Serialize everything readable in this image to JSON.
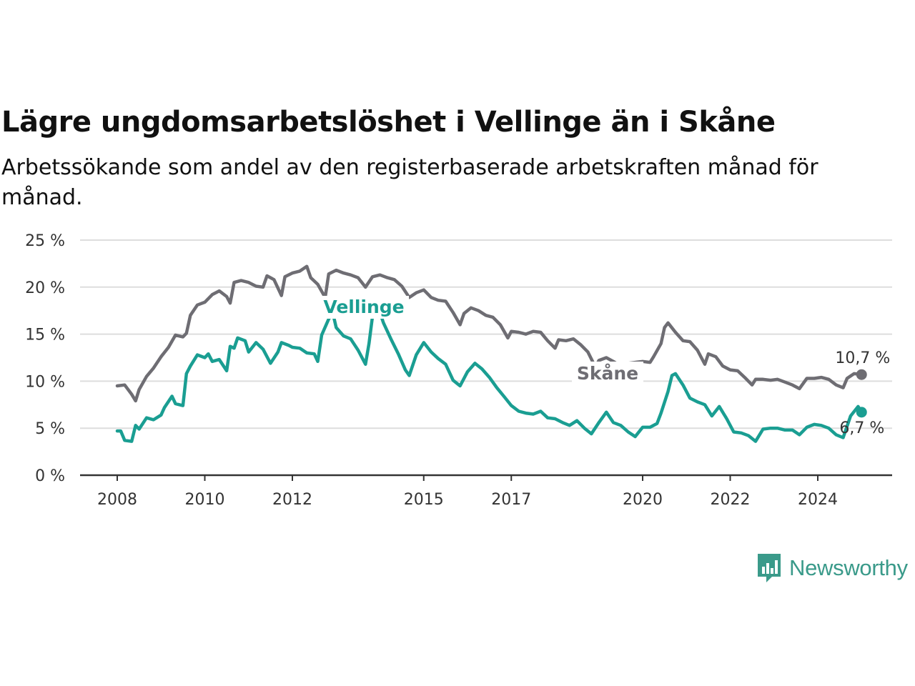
{
  "header": {
    "title": "Lägre ungdomsarbetslöshet i Vellinge än i Skåne",
    "subtitle": "Arbetssökande som andel av den registerbaserade arbetskraften månad för månad."
  },
  "brand": {
    "name": "Newsworthy",
    "icon": "newsworthy-logo-icon"
  },
  "colors": {
    "skane": "#6e6d73",
    "vellinge": "#1a9e92",
    "grid": "#dddddd",
    "axis": "#333333"
  },
  "chart_data": {
    "type": "line",
    "ylim": [
      0,
      25
    ],
    "y_ticks": [
      0,
      5,
      10,
      15,
      20,
      25
    ],
    "y_tick_labels": [
      "0 %",
      "5 %",
      "10 %",
      "15 %",
      "20 %",
      "25 %"
    ],
    "x_ticks": [
      2008,
      2010,
      2012,
      2015,
      2017,
      2020,
      2022,
      2024
    ],
    "x_tick_labels": [
      "2008",
      "2010",
      "2012",
      "2015",
      "2017",
      "2020",
      "2022",
      "2024"
    ],
    "grid": true,
    "series": [
      {
        "name": "Skåne",
        "color": "#6e6d73",
        "end_label": "10,7 %",
        "points": [
          [
            2008.0,
            9.5
          ],
          [
            2008.17,
            9.6
          ],
          [
            2008.33,
            8.6
          ],
          [
            2008.42,
            7.9
          ],
          [
            2008.5,
            9.1
          ],
          [
            2008.67,
            10.5
          ],
          [
            2008.83,
            11.4
          ],
          [
            2009.0,
            12.6
          ],
          [
            2009.17,
            13.6
          ],
          [
            2009.33,
            14.9
          ],
          [
            2009.5,
            14.7
          ],
          [
            2009.58,
            15.1
          ],
          [
            2009.67,
            17.0
          ],
          [
            2009.83,
            18.1
          ],
          [
            2010.0,
            18.4
          ],
          [
            2010.17,
            19.2
          ],
          [
            2010.33,
            19.6
          ],
          [
            2010.5,
            19.0
          ],
          [
            2010.58,
            18.3
          ],
          [
            2010.67,
            20.5
          ],
          [
            2010.83,
            20.7
          ],
          [
            2011.0,
            20.5
          ],
          [
            2011.17,
            20.1
          ],
          [
            2011.33,
            20.0
          ],
          [
            2011.42,
            21.2
          ],
          [
            2011.58,
            20.8
          ],
          [
            2011.75,
            19.1
          ],
          [
            2011.83,
            21.1
          ],
          [
            2012.0,
            21.5
          ],
          [
            2012.17,
            21.7
          ],
          [
            2012.33,
            22.2
          ],
          [
            2012.42,
            21.0
          ],
          [
            2012.58,
            20.3
          ],
          [
            2012.75,
            18.9
          ],
          [
            2012.83,
            21.4
          ],
          [
            2013.0,
            21.8
          ],
          [
            2013.17,
            21.5
          ],
          [
            2013.33,
            21.3
          ],
          [
            2013.5,
            21.0
          ],
          [
            2013.67,
            20.0
          ],
          [
            2013.83,
            21.1
          ],
          [
            2014.0,
            21.3
          ],
          [
            2014.17,
            21.0
          ],
          [
            2014.33,
            20.8
          ],
          [
            2014.5,
            20.1
          ],
          [
            2014.67,
            18.9
          ],
          [
            2014.83,
            19.4
          ],
          [
            2015.0,
            19.7
          ],
          [
            2015.17,
            18.9
          ],
          [
            2015.33,
            18.6
          ],
          [
            2015.5,
            18.5
          ],
          [
            2015.67,
            17.3
          ],
          [
            2015.83,
            16.0
          ],
          [
            2015.92,
            17.2
          ],
          [
            2016.08,
            17.8
          ],
          [
            2016.25,
            17.5
          ],
          [
            2016.42,
            17.0
          ],
          [
            2016.58,
            16.8
          ],
          [
            2016.75,
            16.0
          ],
          [
            2016.92,
            14.6
          ],
          [
            2017.0,
            15.3
          ],
          [
            2017.17,
            15.2
          ],
          [
            2017.33,
            15.0
          ],
          [
            2017.5,
            15.3
          ],
          [
            2017.67,
            15.2
          ],
          [
            2017.83,
            14.3
          ],
          [
            2018.0,
            13.5
          ],
          [
            2018.08,
            14.4
          ],
          [
            2018.25,
            14.3
          ],
          [
            2018.42,
            14.5
          ],
          [
            2018.58,
            13.9
          ],
          [
            2018.75,
            13.1
          ],
          [
            2018.92,
            11.5
          ],
          [
            2019.0,
            12.2
          ],
          [
            2019.17,
            12.5
          ],
          [
            2019.33,
            12.1
          ],
          [
            2019.5,
            11.6
          ],
          [
            2019.67,
            11.9
          ],
          [
            2019.83,
            12.0
          ],
          [
            2020.0,
            12.1
          ],
          [
            2020.17,
            12.0
          ],
          [
            2020.25,
            12.6
          ],
          [
            2020.42,
            14.0
          ],
          [
            2020.5,
            15.7
          ],
          [
            2020.58,
            16.2
          ],
          [
            2020.75,
            15.2
          ],
          [
            2020.92,
            14.3
          ],
          [
            2021.08,
            14.2
          ],
          [
            2021.25,
            13.3
          ],
          [
            2021.42,
            11.8
          ],
          [
            2021.5,
            12.9
          ],
          [
            2021.67,
            12.6
          ],
          [
            2021.83,
            11.6
          ],
          [
            2022.0,
            11.2
          ],
          [
            2022.17,
            11.1
          ],
          [
            2022.33,
            10.4
          ],
          [
            2022.5,
            9.6
          ],
          [
            2022.58,
            10.2
          ],
          [
            2022.75,
            10.2
          ],
          [
            2022.92,
            10.1
          ],
          [
            2023.08,
            10.2
          ],
          [
            2023.25,
            9.9
          ],
          [
            2023.42,
            9.6
          ],
          [
            2023.58,
            9.2
          ],
          [
            2023.75,
            10.3
          ],
          [
            2023.92,
            10.3
          ],
          [
            2024.08,
            10.4
          ],
          [
            2024.25,
            10.2
          ],
          [
            2024.42,
            9.6
          ],
          [
            2024.58,
            9.3
          ],
          [
            2024.67,
            10.3
          ],
          [
            2024.83,
            10.8
          ],
          [
            2025.0,
            10.7
          ]
        ]
      },
      {
        "name": "Vellinge",
        "color": "#1a9e92",
        "end_label": "6,7 %",
        "points": [
          [
            2008.0,
            4.7
          ],
          [
            2008.08,
            4.7
          ],
          [
            2008.17,
            3.7
          ],
          [
            2008.33,
            3.6
          ],
          [
            2008.42,
            5.3
          ],
          [
            2008.5,
            4.9
          ],
          [
            2008.67,
            6.1
          ],
          [
            2008.83,
            5.9
          ],
          [
            2009.0,
            6.4
          ],
          [
            2009.08,
            7.2
          ],
          [
            2009.25,
            8.4
          ],
          [
            2009.33,
            7.6
          ],
          [
            2009.5,
            7.4
          ],
          [
            2009.58,
            10.8
          ],
          [
            2009.67,
            11.6
          ],
          [
            2009.83,
            12.8
          ],
          [
            2010.0,
            12.5
          ],
          [
            2010.08,
            12.9
          ],
          [
            2010.17,
            12.1
          ],
          [
            2010.33,
            12.3
          ],
          [
            2010.5,
            11.1
          ],
          [
            2010.58,
            13.7
          ],
          [
            2010.67,
            13.5
          ],
          [
            2010.75,
            14.6
          ],
          [
            2010.92,
            14.3
          ],
          [
            2011.0,
            13.1
          ],
          [
            2011.17,
            14.1
          ],
          [
            2011.33,
            13.4
          ],
          [
            2011.5,
            11.9
          ],
          [
            2011.67,
            13.1
          ],
          [
            2011.75,
            14.1
          ],
          [
            2011.92,
            13.8
          ],
          [
            2012.0,
            13.6
          ],
          [
            2012.17,
            13.5
          ],
          [
            2012.33,
            13.0
          ],
          [
            2012.5,
            12.9
          ],
          [
            2012.58,
            12.1
          ],
          [
            2012.67,
            14.9
          ],
          [
            2012.83,
            16.6
          ],
          [
            2012.92,
            17.3
          ],
          [
            2013.0,
            15.7
          ],
          [
            2013.17,
            14.8
          ],
          [
            2013.33,
            14.5
          ],
          [
            2013.5,
            13.3
          ],
          [
            2013.67,
            11.8
          ],
          [
            2013.75,
            14.0
          ],
          [
            2013.83,
            16.9
          ],
          [
            2014.0,
            17.3
          ],
          [
            2014.08,
            16.2
          ],
          [
            2014.25,
            14.5
          ],
          [
            2014.42,
            12.9
          ],
          [
            2014.58,
            11.2
          ],
          [
            2014.67,
            10.6
          ],
          [
            2014.83,
            12.8
          ],
          [
            2015.0,
            14.1
          ],
          [
            2015.17,
            13.1
          ],
          [
            2015.33,
            12.4
          ],
          [
            2015.5,
            11.8
          ],
          [
            2015.67,
            10.1
          ],
          [
            2015.83,
            9.5
          ],
          [
            2016.0,
            11.0
          ],
          [
            2016.17,
            11.9
          ],
          [
            2016.33,
            11.3
          ],
          [
            2016.5,
            10.4
          ],
          [
            2016.67,
            9.3
          ],
          [
            2016.83,
            8.4
          ],
          [
            2017.0,
            7.4
          ],
          [
            2017.17,
            6.8
          ],
          [
            2017.33,
            6.6
          ],
          [
            2017.5,
            6.5
          ],
          [
            2017.67,
            6.8
          ],
          [
            2017.83,
            6.1
          ],
          [
            2018.0,
            6.0
          ],
          [
            2018.17,
            5.6
          ],
          [
            2018.33,
            5.3
          ],
          [
            2018.5,
            5.8
          ],
          [
            2018.67,
            5.0
          ],
          [
            2018.83,
            4.4
          ],
          [
            2019.0,
            5.6
          ],
          [
            2019.17,
            6.7
          ],
          [
            2019.33,
            5.6
          ],
          [
            2019.5,
            5.3
          ],
          [
            2019.67,
            4.6
          ],
          [
            2019.83,
            4.1
          ],
          [
            2020.0,
            5.1
          ],
          [
            2020.17,
            5.1
          ],
          [
            2020.33,
            5.5
          ],
          [
            2020.42,
            6.6
          ],
          [
            2020.58,
            8.9
          ],
          [
            2020.67,
            10.6
          ],
          [
            2020.75,
            10.8
          ],
          [
            2020.92,
            9.6
          ],
          [
            2021.08,
            8.2
          ],
          [
            2021.25,
            7.8
          ],
          [
            2021.42,
            7.5
          ],
          [
            2021.58,
            6.3
          ],
          [
            2021.75,
            7.3
          ],
          [
            2021.92,
            6.0
          ],
          [
            2022.08,
            4.6
          ],
          [
            2022.25,
            4.5
          ],
          [
            2022.42,
            4.2
          ],
          [
            2022.58,
            3.6
          ],
          [
            2022.75,
            4.9
          ],
          [
            2022.92,
            5.0
          ],
          [
            2023.08,
            5.0
          ],
          [
            2023.25,
            4.8
          ],
          [
            2023.42,
            4.8
          ],
          [
            2023.58,
            4.3
          ],
          [
            2023.75,
            5.1
          ],
          [
            2023.92,
            5.4
          ],
          [
            2024.08,
            5.3
          ],
          [
            2024.25,
            5.0
          ],
          [
            2024.42,
            4.3
          ],
          [
            2024.58,
            4.0
          ],
          [
            2024.75,
            6.3
          ],
          [
            2024.92,
            7.3
          ],
          [
            2025.0,
            6.7
          ]
        ]
      }
    ]
  }
}
